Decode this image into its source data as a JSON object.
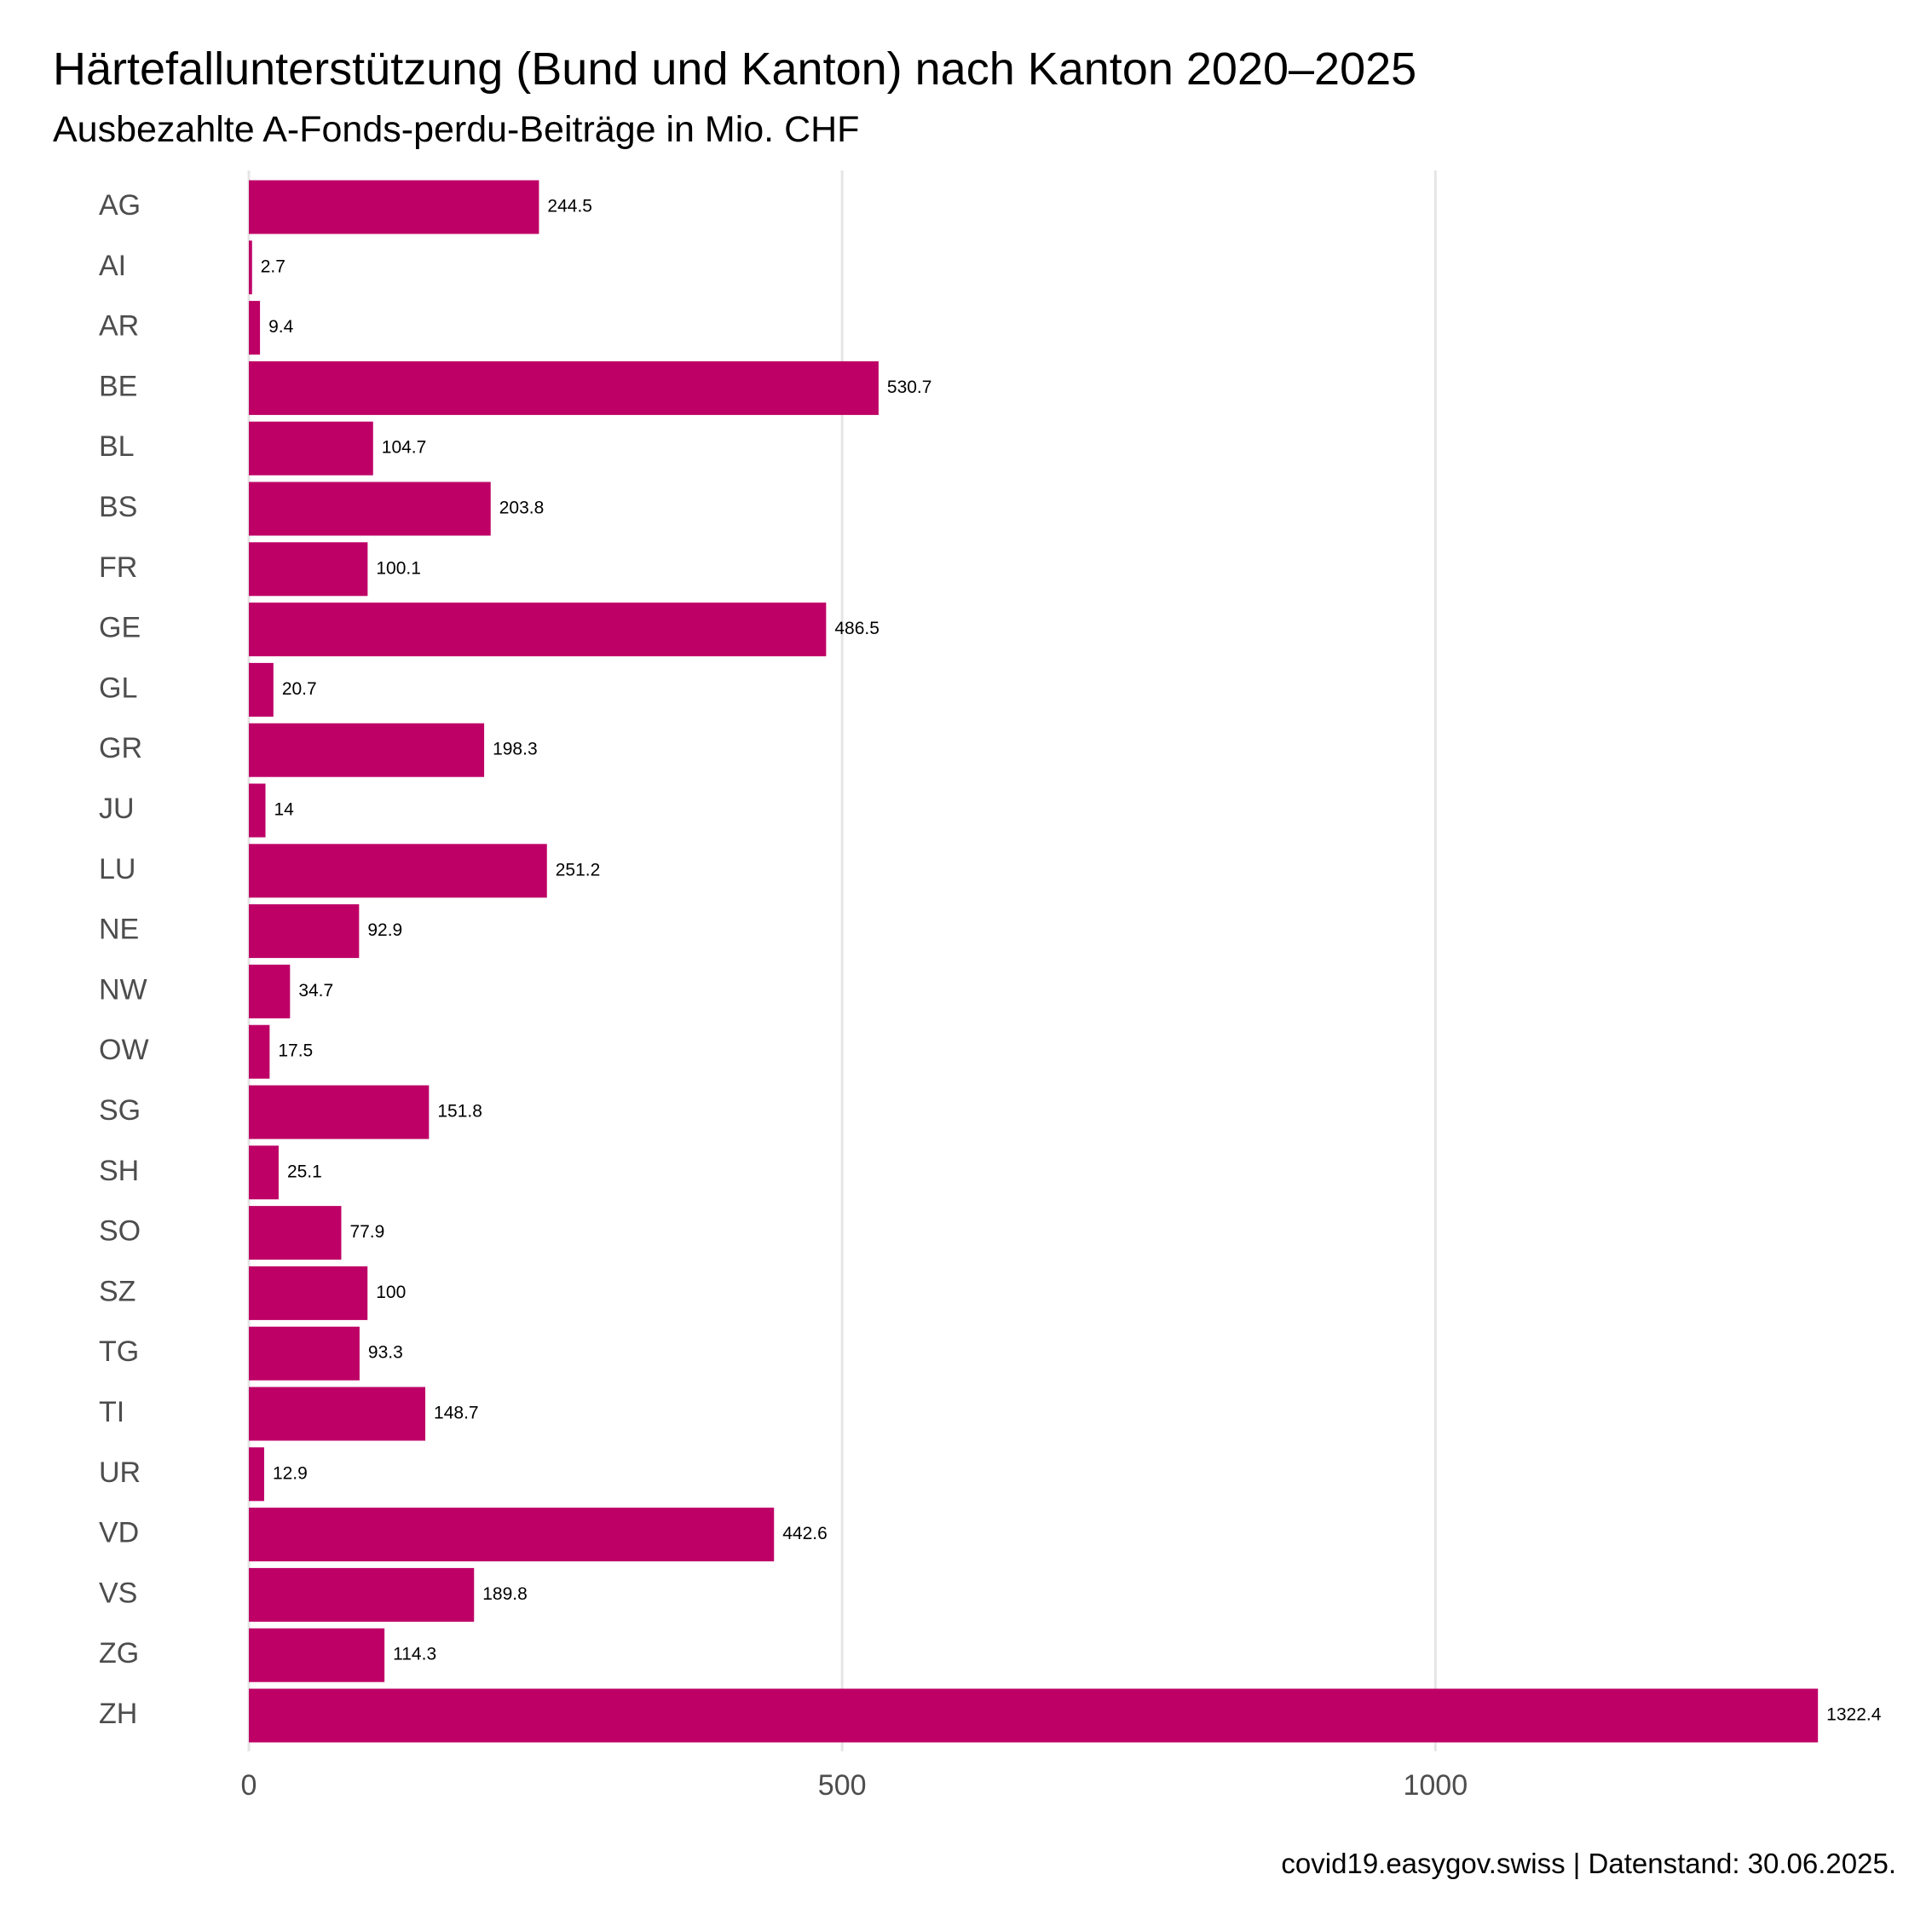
{
  "title": "Härtefallunterstützung (Bund und Kanton) nach Kanton 2020–2025",
  "subtitle": "Ausbezahlte A-Fonds-perdu-Beiträge in Mio. CHF",
  "caption": "covid19.easygov.swiss | Datenstand: 30.06.2025.",
  "colors": {
    "bar": "#BE0066",
    "grid": "#e5e5e5",
    "tick_text": "#4d4d4d"
  },
  "chart_data": {
    "type": "bar",
    "orientation": "horizontal",
    "categories": [
      "AG",
      "AI",
      "AR",
      "BE",
      "BL",
      "BS",
      "FR",
      "GE",
      "GL",
      "GR",
      "JU",
      "LU",
      "NE",
      "NW",
      "OW",
      "SG",
      "SH",
      "SO",
      "SZ",
      "TG",
      "TI",
      "UR",
      "VD",
      "VS",
      "ZG",
      "ZH"
    ],
    "values": [
      244.5,
      2.7,
      9.4,
      530.7,
      104.7,
      203.8,
      100.1,
      486.5,
      20.7,
      198.3,
      14,
      251.2,
      92.9,
      34.7,
      17.5,
      151.8,
      25.1,
      77.9,
      100,
      93.3,
      148.7,
      12.9,
      442.6,
      189.8,
      114.3,
      1322.4
    ],
    "value_labels": [
      "244.5",
      "2.7",
      "9.4",
      "530.7",
      "104.7",
      "203.8",
      "100.1",
      "486.5",
      "20.7",
      "198.3",
      "14",
      "251.2",
      "92.9",
      "34.7",
      "17.5",
      "151.8",
      "25.1",
      "77.9",
      "100",
      "93.3",
      "148.7",
      "12.9",
      "442.6",
      "189.8",
      "114.3",
      "1322.4"
    ],
    "x_ticks": [
      0,
      500,
      1000
    ],
    "x_tick_labels": [
      "0",
      "500",
      "1000"
    ],
    "xlim": [
      0,
      1322.4
    ],
    "grid": true,
    "legend": "none"
  }
}
